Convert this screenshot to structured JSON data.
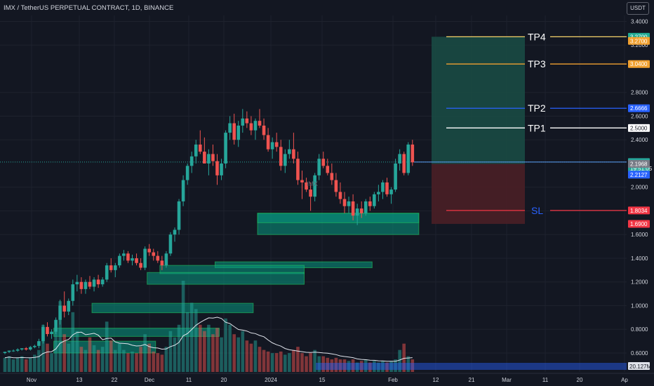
{
  "title": "IMX / TetherUS PERPETUAL CONTRACT, 1D, BINANCE",
  "unit_button": "USDT",
  "symbol_watermark": "IMX",
  "colors": {
    "background": "#131722",
    "up": "#26a69a",
    "down": "#ef5350",
    "grid": "#1e222d",
    "axis_text": "#d1d4dc",
    "zone_green": "#089981",
    "profit_zone": "#1a4a44",
    "loss_zone": "#4a1f26",
    "tp4": "#f5d36a",
    "tp3": "#f0a030",
    "tp2": "#2962ff",
    "tp1": "#ffffff",
    "sl": "#f23645",
    "volume_ma": "#e0e3eb"
  },
  "chart_data": {
    "type": "candlestick",
    "ylim": [
      0.44,
      3.45
    ],
    "y_ticks": [
      "3.4000",
      "3.2000",
      "2.8000",
      "2.6000",
      "2.4000",
      "2.0000",
      "1.8000",
      "1.6000",
      "1.4000",
      "1.2000",
      "1.0000",
      "0.8000",
      "0.6000"
    ],
    "x_ticks": [
      "Nov",
      "13",
      "22",
      "Dec",
      "11",
      "20",
      "2024",
      "15",
      "Feb",
      "12",
      "21",
      "Mar",
      "11",
      "20",
      "Ap"
    ],
    "candles": [
      [
        0.6,
        0.61,
        0.59,
        0.61
      ],
      [
        0.61,
        0.62,
        0.6,
        0.62
      ],
      [
        0.62,
        0.63,
        0.61,
        0.62
      ],
      [
        0.62,
        0.64,
        0.61,
        0.63
      ],
      [
        0.63,
        0.64,
        0.62,
        0.64
      ],
      [
        0.64,
        0.65,
        0.62,
        0.63
      ],
      [
        0.63,
        0.66,
        0.62,
        0.65
      ],
      [
        0.65,
        0.67,
        0.64,
        0.66
      ],
      [
        0.66,
        0.72,
        0.64,
        0.7
      ],
      [
        0.7,
        0.84,
        0.68,
        0.82
      ],
      [
        0.82,
        0.86,
        0.74,
        0.76
      ],
      [
        0.76,
        0.8,
        0.72,
        0.78
      ],
      [
        0.78,
        0.9,
        0.76,
        0.88
      ],
      [
        0.88,
        1.05,
        0.84,
        1.0
      ],
      [
        1.0,
        1.12,
        0.9,
        0.95
      ],
      [
        0.95,
        1.06,
        0.92,
        1.04
      ],
      [
        1.04,
        1.22,
        1.0,
        1.18
      ],
      [
        1.18,
        1.26,
        1.12,
        1.2
      ],
      [
        1.2,
        1.24,
        1.1,
        1.14
      ],
      [
        1.14,
        1.22,
        1.1,
        1.2
      ],
      [
        1.2,
        1.25,
        1.14,
        1.16
      ],
      [
        1.16,
        1.24,
        1.12,
        1.22
      ],
      [
        1.22,
        1.26,
        1.15,
        1.18
      ],
      [
        1.18,
        1.24,
        1.16,
        1.22
      ],
      [
        1.22,
        1.36,
        1.2,
        1.34
      ],
      [
        1.34,
        1.4,
        1.28,
        1.3
      ],
      [
        1.3,
        1.36,
        1.24,
        1.34
      ],
      [
        1.34,
        1.44,
        1.32,
        1.42
      ],
      [
        1.42,
        1.47,
        1.38,
        1.44
      ],
      [
        1.44,
        1.46,
        1.36,
        1.38
      ],
      [
        1.38,
        1.43,
        1.34,
        1.4
      ],
      [
        1.4,
        1.44,
        1.34,
        1.36
      ],
      [
        1.36,
        1.4,
        1.3,
        1.32
      ],
      [
        1.32,
        1.5,
        1.3,
        1.48
      ],
      [
        1.48,
        1.52,
        1.42,
        1.45
      ],
      [
        1.45,
        1.48,
        1.38,
        1.42
      ],
      [
        1.42,
        1.46,
        1.36,
        1.38
      ],
      [
        1.38,
        1.42,
        1.3,
        1.34
      ],
      [
        1.34,
        1.46,
        1.32,
        1.44
      ],
      [
        1.44,
        1.62,
        1.42,
        1.6
      ],
      [
        1.6,
        1.66,
        1.54,
        1.64
      ],
      [
        1.64,
        1.9,
        1.6,
        1.88
      ],
      [
        1.88,
        2.1,
        1.84,
        2.06
      ],
      [
        2.06,
        2.2,
        2.02,
        2.18
      ],
      [
        2.18,
        2.3,
        2.12,
        2.26
      ],
      [
        2.26,
        2.4,
        2.2,
        2.36
      ],
      [
        2.36,
        2.48,
        2.28,
        2.3
      ],
      [
        2.3,
        2.42,
        2.22,
        2.2
      ],
      [
        2.2,
        2.32,
        2.1,
        2.28
      ],
      [
        2.28,
        2.36,
        2.18,
        2.22
      ],
      [
        2.22,
        2.28,
        2.02,
        2.1
      ],
      [
        2.1,
        2.24,
        2.06,
        2.2
      ],
      [
        2.2,
        2.48,
        2.16,
        2.46
      ],
      [
        2.46,
        2.6,
        2.4,
        2.54
      ],
      [
        2.54,
        2.62,
        2.36,
        2.4
      ],
      [
        2.4,
        2.56,
        2.34,
        2.52
      ],
      [
        2.52,
        2.66,
        2.46,
        2.58
      ],
      [
        2.58,
        2.64,
        2.5,
        2.54
      ],
      [
        2.54,
        2.6,
        2.44,
        2.48
      ],
      [
        2.48,
        2.58,
        2.4,
        2.56
      ],
      [
        2.56,
        2.66,
        2.5,
        2.52
      ],
      [
        2.52,
        2.58,
        2.4,
        2.44
      ],
      [
        2.44,
        2.5,
        2.3,
        2.32
      ],
      [
        2.32,
        2.42,
        2.24,
        2.38
      ],
      [
        2.38,
        2.46,
        2.3,
        2.34
      ],
      [
        2.34,
        2.4,
        2.14,
        2.18
      ],
      [
        2.18,
        2.32,
        2.12,
        2.28
      ],
      [
        2.28,
        2.4,
        2.24,
        2.32
      ],
      [
        2.32,
        2.46,
        2.2,
        2.24
      ],
      [
        2.24,
        2.3,
        2.02,
        2.06
      ],
      [
        2.06,
        2.14,
        1.9,
        2.04
      ],
      [
        2.04,
        2.08,
        1.96,
        1.98
      ],
      [
        1.98,
        2.04,
        1.8,
        1.92
      ],
      [
        1.92,
        2.12,
        1.88,
        2.1
      ],
      [
        2.1,
        2.28,
        2.06,
        2.24
      ],
      [
        2.24,
        2.3,
        2.16,
        2.18
      ],
      [
        2.18,
        2.24,
        2.1,
        2.12
      ],
      [
        2.12,
        2.2,
        2.02,
        2.06
      ],
      [
        2.06,
        2.12,
        1.92,
        1.96
      ],
      [
        1.96,
        2.04,
        1.86,
        1.9
      ],
      [
        1.9,
        1.96,
        1.78,
        1.84
      ],
      [
        1.84,
        1.92,
        1.78,
        1.88
      ],
      [
        1.88,
        1.94,
        1.72,
        1.76
      ],
      [
        1.76,
        1.86,
        1.68,
        1.82
      ],
      [
        1.82,
        1.88,
        1.74,
        1.78
      ],
      [
        1.78,
        1.9,
        1.76,
        1.88
      ],
      [
        1.88,
        1.92,
        1.8,
        1.84
      ],
      [
        1.84,
        1.96,
        1.82,
        1.94
      ],
      [
        1.94,
        2.02,
        1.88,
        1.96
      ],
      [
        1.96,
        2.06,
        1.9,
        2.04
      ],
      [
        2.04,
        2.08,
        1.92,
        1.94
      ],
      [
        1.94,
        2.0,
        1.86,
        1.98
      ],
      [
        1.98,
        2.24,
        1.96,
        2.2
      ],
      [
        2.2,
        2.32,
        2.14,
        2.28
      ],
      [
        2.28,
        2.3,
        2.1,
        2.12
      ],
      [
        2.12,
        2.38,
        2.1,
        2.36
      ],
      [
        2.36,
        2.4,
        2.18,
        2.21
      ]
    ],
    "volume": [
      9,
      10,
      8,
      9,
      10,
      8,
      9,
      11,
      14,
      30,
      18,
      12,
      26,
      45,
      24,
      18,
      38,
      26,
      16,
      14,
      22,
      17,
      14,
      16,
      32,
      20,
      14,
      18,
      14,
      12,
      13,
      12,
      16,
      24,
      18,
      13,
      12,
      11,
      16,
      26,
      22,
      30,
      58,
      38,
      44,
      40,
      30,
      26,
      30,
      24,
      28,
      22,
      34,
      30,
      24,
      22,
      26,
      20,
      18,
      20,
      16,
      14,
      13,
      12,
      12,
      13,
      11,
      12,
      14,
      16,
      12,
      10,
      12,
      14,
      10,
      10,
      9,
      8,
      9,
      8,
      8,
      7,
      8,
      6,
      7,
      8,
      6,
      7,
      6,
      7,
      6,
      7,
      8,
      14,
      18,
      10,
      8
    ],
    "zones": [
      {
        "y0": 1.6,
        "y1": 1.78,
        "x0": 60,
        "x1": 97
      },
      {
        "y0": 1.7,
        "y1": 1.78,
        "x0": 60,
        "x1": 97
      },
      {
        "y0": 1.32,
        "y1": 1.37,
        "x0": 50,
        "x1": 86
      },
      {
        "y0": 1.27,
        "y1": 1.34,
        "x0": 37,
        "x1": 70
      },
      {
        "y0": 1.18,
        "y1": 1.28,
        "x0": 34,
        "x1": 70
      },
      {
        "y0": 0.94,
        "y1": 1.02,
        "x0": 21,
        "x1": 58
      },
      {
        "y0": 0.74,
        "y1": 0.81,
        "x0": 12,
        "x1": 50
      },
      {
        "y0": 0.6,
        "y1": 0.7,
        "x0": 12,
        "x1": 35
      }
    ],
    "entry": 2.1968,
    "stop_low": 1.69,
    "target_high": 3.27,
    "levels": [
      {
        "name": "TP4",
        "price": 3.27
      },
      {
        "name": "TP3",
        "price": 3.04
      },
      {
        "name": "TP2",
        "price": 2.6666
      },
      {
        "name": "TP1",
        "price": 2.5
      },
      {
        "name": "SL",
        "price": 1.8034
      }
    ],
    "price_labels": [
      {
        "text": "3.2700",
        "price": 3.27,
        "color": "#22ab94"
      },
      {
        "text": "3.2700",
        "price": 3.235,
        "color": "#f0a030"
      },
      {
        "text": "3.0400",
        "price": 3.04,
        "color": "#f0a030"
      },
      {
        "text": "2.6666",
        "price": 2.6666,
        "color": "#2962ff"
      },
      {
        "text": "2.5000",
        "price": 2.5,
        "color": "#ffffff"
      },
      {
        "text": "2.2127",
        "price": 2.2127,
        "color": "#26a69a"
      },
      {
        "text": "19:51:05",
        "price": 2.2127,
        "color": "#26a69a"
      },
      {
        "text": "2.2127",
        "price": 2.2127,
        "color": "#2962ff"
      },
      {
        "text": "2.1968",
        "price": 2.1968,
        "color": "#787b86"
      },
      {
        "text": "1.8034",
        "price": 1.8034,
        "color": "#f23645"
      },
      {
        "text": "1.6900",
        "price": 1.69,
        "color": "#f23645"
      }
    ],
    "volume_label": "20.127M",
    "grid": true
  }
}
